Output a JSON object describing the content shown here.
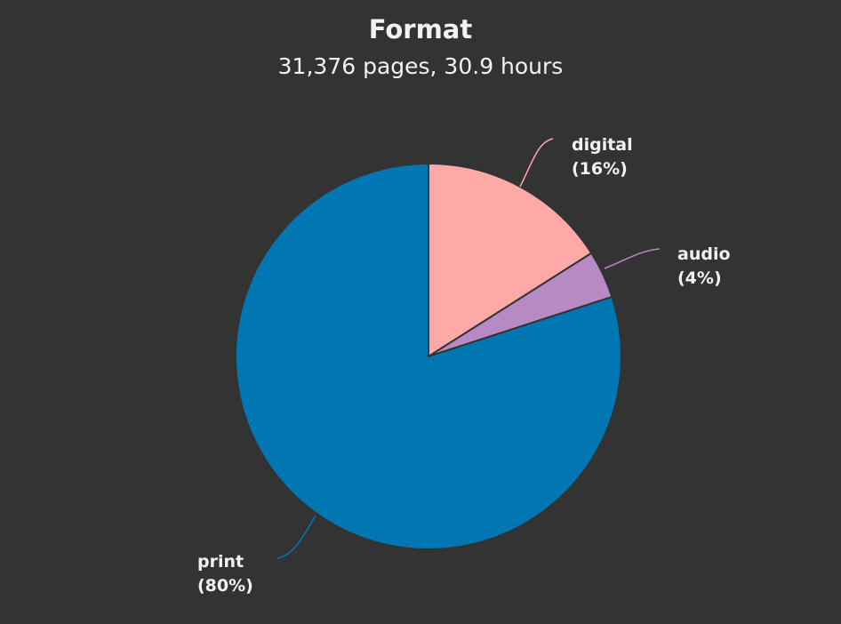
{
  "chart_data": {
    "type": "pie",
    "title": "Format",
    "subtitle": "31,376 pages, 30.9 hours",
    "slices": [
      {
        "label": "digital",
        "value": 16,
        "pct_label": "(16%)",
        "color": "#ffa8a8"
      },
      {
        "label": "audio",
        "value": 4,
        "pct_label": "(4%)",
        "color": "#b88ac4"
      },
      {
        "label": "print",
        "value": 80,
        "pct_label": "(80%)",
        "color": "#0077b3"
      }
    ],
    "start_angle": "top",
    "direction": "clockwise",
    "background": "#333333"
  }
}
